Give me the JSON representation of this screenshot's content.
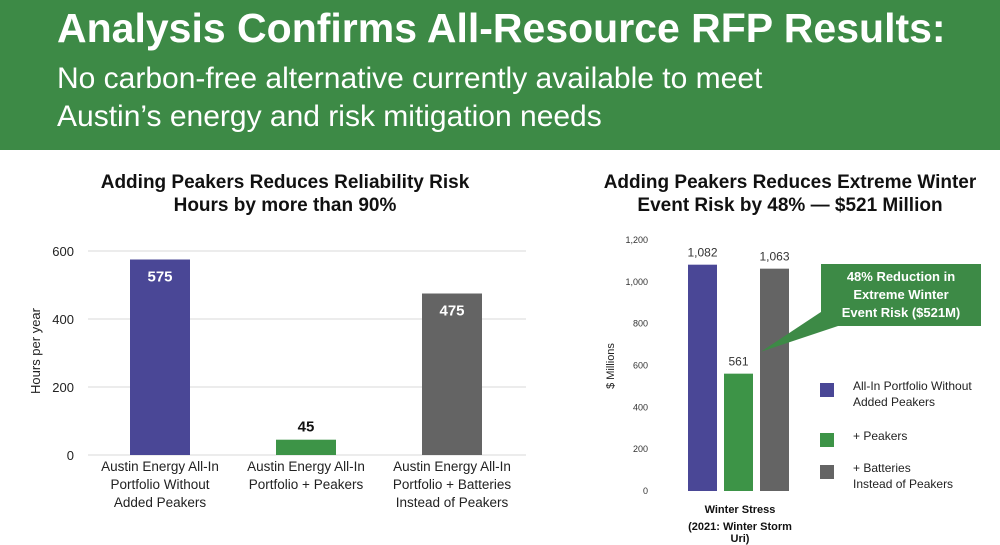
{
  "header": {
    "title": "Analysis Confirms All-Resource RFP Results:",
    "subtitle_line1": "No carbon-free alternative currently available to meet",
    "subtitle_line2": "Austin’s energy and risk mitigation needs"
  },
  "chart_data": [
    {
      "type": "bar",
      "title_line1": "Adding Peakers Reduces Reliability Risk",
      "title_line2": "Hours by more than 90%",
      "ylabel": "Hours per year",
      "ylim": [
        0,
        600
      ],
      "yticks": [
        "0",
        "200",
        "400",
        "600"
      ],
      "grid": true,
      "categories": [
        {
          "line1": "Austin Energy All-In",
          "line2": "Portfolio Without",
          "line3": "Added Peakers"
        },
        {
          "line1": "Austin Energy All-In",
          "line2": "Portfolio + Peakers",
          "line3": ""
        },
        {
          "line1": "Austin Energy All-In",
          "line2": "Portfolio + Batteries",
          "line3": "Instead of Peakers"
        }
      ],
      "values": [
        575,
        45,
        475
      ],
      "data_labels": [
        "575",
        "45",
        "475"
      ],
      "colors": [
        "#4a4796",
        "#3d9447",
        "#646464"
      ]
    },
    {
      "type": "bar",
      "title_line1": "Adding Peakers Reduces Extreme Winter",
      "title_line2": "Event Risk by 48% — $521 Million",
      "ylabel": "$ Millions",
      "ylim": [
        0,
        1200
      ],
      "yticks": [
        "0",
        "200",
        "400",
        "600",
        "800",
        "1,000",
        "1,200"
      ],
      "grid": false,
      "category_line1": "Winter Stress",
      "category_line2": "(2021: Winter Storm Uri)",
      "series": [
        {
          "name": "All-In Portfolio Without Added Peakers",
          "legend_line1": "All-In Portfolio Without",
          "legend_line2": "Added Peakers",
          "value": 1082,
          "label": "1,082",
          "color": "#4a4796"
        },
        {
          "name": "+ Peakers",
          "legend_line1": "+ Peakers",
          "legend_line2": "",
          "value": 561,
          "label": "561",
          "color": "#3d9447"
        },
        {
          "name": "+ Batteries Instead of Peakers",
          "legend_line1": "+ Batteries",
          "legend_line2": "Instead of Peakers",
          "value": 1063,
          "label": "1,063",
          "color": "#646464"
        }
      ],
      "callout_line1": "48% Reduction in",
      "callout_line2": "Extreme Winter",
      "callout_line3": "Event Risk ($521M)"
    }
  ]
}
